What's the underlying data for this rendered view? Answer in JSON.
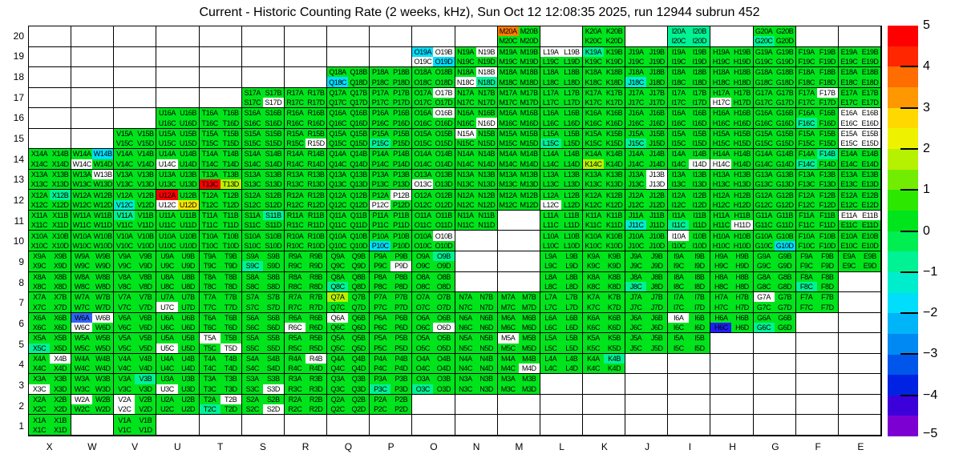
{
  "title": "Current - Historic Counting Rate (2 weeks, kHz), Sun Oct 12 12:08:35 2025, run 12944 subrun 452",
  "axes": {
    "x_labels": [
      "X",
      "W",
      "V",
      "U",
      "T",
      "S",
      "R",
      "Q",
      "P",
      "O",
      "N",
      "M",
      "L",
      "K",
      "J",
      "I",
      "H",
      "G",
      "F",
      "E"
    ],
    "y_labels": [
      "20",
      "19",
      "18",
      "17",
      "16",
      "15",
      "14",
      "13",
      "12",
      "11",
      "10",
      "9",
      "8",
      "7",
      "6",
      "5",
      "4",
      "3",
      "2",
      "1"
    ]
  },
  "palette": {
    "green": "#00e41c",
    "mint": "#00f295",
    "turquoise": "#00edcd",
    "cyan": "#00defc",
    "blue": "#2f63fa",
    "darkblue": "#1f1ef2",
    "chartreuse": "#b8f200",
    "yellow": "#ffe800",
    "orange": "#ff7c00",
    "red": "#ff0000",
    "white": "#ffffff"
  },
  "colorbar": {
    "min": -5,
    "max": 5,
    "tick_labels": [
      "5",
      "4",
      "3",
      "2",
      "1",
      "0",
      "−1",
      "−2",
      "−3",
      "−4",
      "−5"
    ],
    "tick_values": [
      5,
      4,
      3,
      2,
      1,
      0,
      -1,
      -2,
      -3,
      -4,
      -5
    ],
    "bands_top_to_bottom": [
      "#ff0000",
      "#ff2600",
      "#ff6c00",
      "#ff9800",
      "#ffd800",
      "#eef200",
      "#b5f100",
      "#72ec00",
      "#2ce700",
      "#00e41c",
      "#00ee52",
      "#00f295",
      "#00edcd",
      "#00defc",
      "#00b4f8",
      "#0089f2",
      "#0056ea",
      "#0022e2",
      "#3c00da",
      "#7d00d2"
    ]
  },
  "chart_data": {
    "type": "heatmap",
    "title": "Current - Historic Counting Rate (2 weeks, kHz), Sun Oct 12 12:08:35 2025, run 12944 subrun 452",
    "zlim": [
      -5,
      5
    ],
    "x_categories": [
      "X",
      "W",
      "V",
      "U",
      "T",
      "S",
      "R",
      "Q",
      "P",
      "O",
      "N",
      "M",
      "L",
      "K",
      "J",
      "I",
      "H",
      "G",
      "F",
      "E"
    ],
    "y_categories": [
      20,
      19,
      18,
      17,
      16,
      15,
      14,
      13,
      12,
      11,
      10,
      9,
      8,
      7,
      6,
      5,
      4,
      3,
      2,
      1
    ],
    "subcell_suffixes": [
      "A",
      "B",
      "C",
      "D"
    ],
    "default_class": "green",
    "class_values": {
      "green": 0.3,
      "mint": -0.8,
      "turquoise": -1.3,
      "cyan": -1.8,
      "blue": -3.1,
      "darkblue": -3.9,
      "chartreuse": 1.8,
      "yellow": 2.6,
      "orange": 3.7,
      "red": 4.8,
      "white": null
    },
    "rows_present_columns": {
      "20": [
        "M",
        "K",
        "I",
        "G"
      ],
      "19": [
        "O",
        "N",
        "M",
        "L",
        "K",
        "J",
        "I",
        "H",
        "G",
        "F",
        "E"
      ],
      "18": [
        "Q",
        "P",
        "O",
        "N",
        "M",
        "L",
        "K",
        "J",
        "I",
        "H",
        "G",
        "F",
        "E"
      ],
      "17": [
        "S",
        "R",
        "Q",
        "P",
        "O",
        "N",
        "M",
        "L",
        "K",
        "J",
        "I",
        "H",
        "G",
        "F",
        "E"
      ],
      "16": [
        "U",
        "T",
        "S",
        "R",
        "Q",
        "P",
        "O",
        "N",
        "M",
        "L",
        "K",
        "J",
        "I",
        "H",
        "G",
        "F",
        "E"
      ],
      "15": [
        "V",
        "U",
        "T",
        "S",
        "R",
        "Q",
        "P",
        "O",
        "N",
        "M",
        "L",
        "K",
        "J",
        "I",
        "H",
        "G",
        "F",
        "E"
      ],
      "14": [
        "X",
        "W",
        "V",
        "U",
        "T",
        "S",
        "R",
        "Q",
        "P",
        "O",
        "N",
        "M",
        "L",
        "K",
        "J",
        "I",
        "H",
        "G",
        "F",
        "E"
      ],
      "13": [
        "X",
        "W",
        "V",
        "U",
        "T",
        "S",
        "R",
        "Q",
        "P",
        "O",
        "N",
        "M",
        "L",
        "K",
        "J",
        "I",
        "H",
        "G",
        "F",
        "E"
      ],
      "12": [
        "X",
        "W",
        "V",
        "U",
        "T",
        "S",
        "R",
        "Q",
        "P",
        "O",
        "N",
        "M",
        "L",
        "K",
        "J",
        "I",
        "H",
        "G",
        "F",
        "E"
      ],
      "11": [
        "X",
        "W",
        "V",
        "U",
        "T",
        "S",
        "R",
        "Q",
        "P",
        "O",
        "N",
        "L",
        "K",
        "J",
        "I",
        "H",
        "G",
        "F",
        "E"
      ],
      "10": [
        "X",
        "W",
        "V",
        "U",
        "T",
        "S",
        "R",
        "Q",
        "P",
        "O",
        "L",
        "K",
        "J",
        "I",
        "H",
        "G",
        "F",
        "E"
      ],
      "9": [
        "X",
        "W",
        "V",
        "U",
        "T",
        "S",
        "R",
        "Q",
        "P",
        "O",
        "L",
        "K",
        "J",
        "I",
        "H",
        "G",
        "F",
        "E"
      ],
      "8": [
        "X",
        "W",
        "V",
        "U",
        "T",
        "S",
        "R",
        "Q",
        "P",
        "O",
        "L",
        "K",
        "J",
        "I",
        "H",
        "G",
        "F"
      ],
      "7": [
        "X",
        "W",
        "V",
        "U",
        "T",
        "S",
        "R",
        "Q",
        "P",
        "O",
        "N",
        "M",
        "L",
        "K",
        "J",
        "I",
        "H",
        "G",
        "F"
      ],
      "6": [
        "X",
        "W",
        "V",
        "U",
        "T",
        "S",
        "R",
        "Q",
        "P",
        "O",
        "N",
        "M",
        "L",
        "K",
        "J",
        "I",
        "H",
        "G"
      ],
      "5": [
        "X",
        "W",
        "V",
        "U",
        "T",
        "S",
        "R",
        "Q",
        "P",
        "O",
        "N",
        "M",
        "L",
        "K",
        "J",
        "I"
      ],
      "4": [
        "X",
        "W",
        "V",
        "U",
        "T",
        "S",
        "R",
        "Q",
        "P",
        "O",
        "N",
        "M",
        "L",
        "K"
      ],
      "3": [
        "X",
        "W",
        "V",
        "U",
        "T",
        "S",
        "R",
        "Q",
        "P",
        "O",
        "N",
        "M"
      ],
      "2": [
        "X",
        "W",
        "V",
        "U",
        "T",
        "S",
        "R",
        "Q",
        "P"
      ],
      "1": [
        "X",
        "V"
      ]
    },
    "cell_class_overrides": {
      "M20A": "orange",
      "I20A": "mint",
      "I20B": "mint",
      "I20C": "mint",
      "I20D": "mint",
      "G20C": "mint",
      "O19A": "cyan",
      "O19D": "cyan",
      "O19B": "white",
      "O19C": "white",
      "N19B": "white",
      "L19A": "white",
      "L19B": "white",
      "K19A": "mint",
      "Q18C": "cyan",
      "N18B": "white",
      "N18C": "white",
      "N18D": "mint",
      "J18C": "turquoise",
      "S17D": "white",
      "O17B": "white",
      "H17C": "white",
      "F17B": "white",
      "O16B": "white",
      "N16D": "white",
      "F16C": "mint",
      "E16A": "white",
      "E16B": "white",
      "E16C": "white",
      "E16D": "white",
      "N15A": "white",
      "R15D": "white",
      "P15C": "mint",
      "L15C": "mint",
      "J15C": "mint",
      "E15A": "white",
      "E15B": "white",
      "E15C": "white",
      "E15D": "white",
      "W14B": "cyan",
      "W14C": "white",
      "U14C": "white",
      "K14C": "chartreuse",
      "I14D": "white",
      "H14C": "white",
      "F14B": "mint",
      "F14C": "mint",
      "W13B": "white",
      "T13C": "red",
      "T13D": "chartreuse",
      "O13C": "white",
      "J13B": "white",
      "J13D": "white",
      "X12B": "mint",
      "V12C": "turquoise",
      "U12A": "red",
      "U12C": "white",
      "U12D": "yellow",
      "P12B": "white",
      "P12C": "white",
      "L12C": "white",
      "V11A": "mint",
      "S11B": "mint",
      "J11C": "turquoise",
      "I11C": "mint",
      "H11D": "white",
      "E11A": "white",
      "E11B": "white",
      "P10C": "cyan",
      "O10B": "white",
      "I10A": "white",
      "G10D": "cyan",
      "S9C": "mint",
      "P9D": "white",
      "O9B": "mint",
      "Q8C": "mint",
      "J8C": "mint",
      "F8C": "mint",
      "Q7A": "chartreuse",
      "U7C": "white",
      "G7A": "white",
      "W6A": "blue",
      "W6B": "white",
      "W6C": "white",
      "R6C": "white",
      "Q6A": "white",
      "O6D": "white",
      "I6A": "white",
      "H6C": "darkblue",
      "G6C": "mint",
      "X5C": "mint",
      "U5C": "white",
      "T5A": "white",
      "T5D": "white",
      "M5A": "white",
      "X4B": "white",
      "R4B": "white",
      "M4D": "white",
      "K4B": "mint",
      "X3C": "white",
      "V3B": "mint",
      "U3C": "white",
      "S3D": "white",
      "P3C": "mint",
      "O3C": "mint",
      "W2A": "white",
      "V2A": "white",
      "V2C": "white",
      "T2B": "white",
      "T2C": "mint",
      "S2D": "white"
    }
  }
}
